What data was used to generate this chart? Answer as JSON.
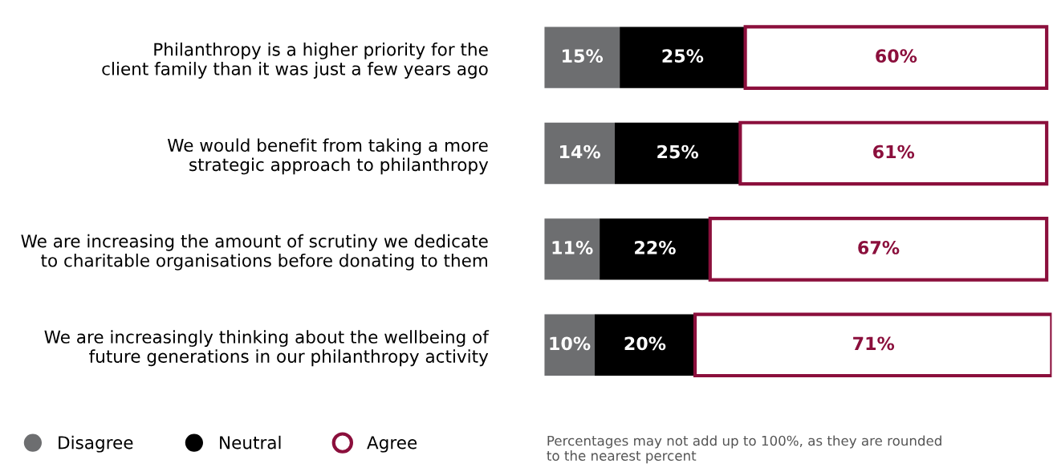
{
  "chart_data": {
    "type": "bar",
    "orientation": "horizontal",
    "stacked": true,
    "legend": "bottom left",
    "marker": "circle",
    "grid": false,
    "tick_labels": "y",
    "categories": [
      "Philanthropy is a higher priority for the\nclient family than it was just a few years ago",
      "We would benefit from taking a more\nstrategic approach to philanthropy",
      "We are increasing the amount of scrutiny we dedicate\nto charitable organisations before donating to them",
      "We are increasingly thinking about the wellbeing of\nfuture generations in our philanthropy activity"
    ],
    "series": [
      {
        "name": "Disagree",
        "color": "#6d6e70",
        "values": [
          15,
          14,
          11,
          10
        ],
        "value_labels": [
          "15%",
          "14%",
          "11%",
          "10%"
        ]
      },
      {
        "name": "Neutral",
        "color": "#000000",
        "values": [
          25,
          25,
          22,
          20
        ],
        "value_labels": [
          "25%",
          "25%",
          "22%",
          "20%"
        ]
      },
      {
        "name": "Agree",
        "color": "#8b0f3c",
        "values": [
          60,
          61,
          67,
          71
        ],
        "value_labels": [
          "60%",
          "61%",
          "67%",
          "71%"
        ]
      }
    ],
    "annotations": [
      "Percentages may not add up to 100%, as they are rounded\nto the nearest percent"
    ]
  }
}
